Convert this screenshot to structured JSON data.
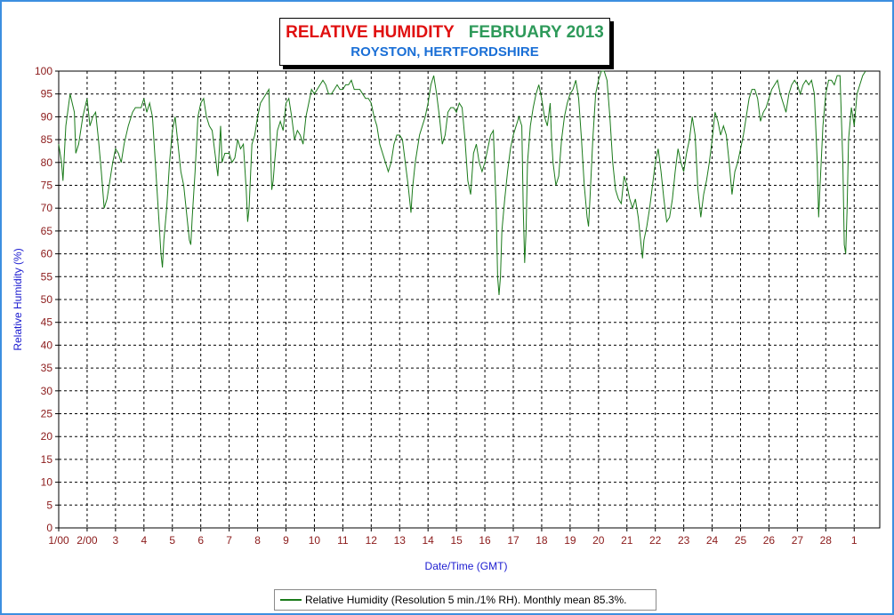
{
  "title": {
    "main": "RELATIVE HUMIDITY",
    "month": "FEBRUARY 2013",
    "location": "ROYSTON, HERTFORDSHIRE"
  },
  "legend": {
    "label": "Relative Humidity (Resolution 5 min./1% RH). Monthly mean 85.3%."
  },
  "colors": {
    "series": "#1a7a1a",
    "title_main": "#e01010",
    "title_month": "#2e9a5a",
    "title_location": "#1a6fd6",
    "axis_title": "#1b1bd0",
    "tick_label": "#8b1a1a",
    "frame": "#3c8fe0"
  },
  "chart_data": {
    "type": "line",
    "xlabel": "Date/Time (GMT)",
    "ylabel": "Relative Humidity (%)",
    "ylim": [
      0,
      100
    ],
    "xlim": [
      1,
      29.9
    ],
    "grid": true,
    "legend_position": "bottom",
    "y_ticks": [
      0,
      5,
      10,
      15,
      20,
      25,
      30,
      35,
      40,
      45,
      50,
      55,
      60,
      65,
      70,
      75,
      80,
      85,
      90,
      95,
      100
    ],
    "x_tick_labels": [
      "1/00",
      "2/00",
      "3",
      "4",
      "5",
      "6",
      "7",
      "8",
      "9",
      "10",
      "11",
      "12",
      "13",
      "14",
      "15",
      "16",
      "17",
      "18",
      "19",
      "20",
      "21",
      "22",
      "23",
      "24",
      "25",
      "26",
      "27",
      "28",
      "1"
    ],
    "x_tick_values": [
      1,
      2,
      3,
      4,
      5,
      6,
      7,
      8,
      9,
      10,
      11,
      12,
      13,
      14,
      15,
      16,
      17,
      18,
      19,
      20,
      21,
      22,
      23,
      24,
      25,
      26,
      27,
      28,
      29
    ],
    "series": [
      {
        "values": [
          [
            1.0,
            84
          ],
          [
            1.1,
            80
          ],
          [
            1.15,
            76
          ],
          [
            1.25,
            88
          ],
          [
            1.4,
            95
          ],
          [
            1.55,
            91
          ],
          [
            1.6,
            82
          ],
          [
            1.7,
            84
          ],
          [
            1.85,
            90
          ],
          [
            2.0,
            94
          ],
          [
            2.1,
            88
          ],
          [
            2.2,
            90
          ],
          [
            2.3,
            91
          ],
          [
            2.4,
            85
          ],
          [
            2.5,
            78
          ],
          [
            2.6,
            70
          ],
          [
            2.7,
            72
          ],
          [
            2.8,
            76
          ],
          [
            2.9,
            80
          ],
          [
            3.0,
            83
          ],
          [
            3.1,
            82
          ],
          [
            3.2,
            80
          ],
          [
            3.3,
            84
          ],
          [
            3.45,
            88
          ],
          [
            3.6,
            91
          ],
          [
            3.7,
            92
          ],
          [
            3.8,
            92
          ],
          [
            3.9,
            92
          ],
          [
            4.0,
            94
          ],
          [
            4.1,
            91
          ],
          [
            4.2,
            93
          ],
          [
            4.3,
            90
          ],
          [
            4.4,
            80
          ],
          [
            4.5,
            70
          ],
          [
            4.6,
            60
          ],
          [
            4.65,
            57
          ],
          [
            4.7,
            63
          ],
          [
            4.8,
            70
          ],
          [
            4.9,
            80
          ],
          [
            5.0,
            87
          ],
          [
            5.1,
            90
          ],
          [
            5.2,
            84
          ],
          [
            5.3,
            78
          ],
          [
            5.4,
            75
          ],
          [
            5.5,
            69
          ],
          [
            5.6,
            63
          ],
          [
            5.65,
            62
          ],
          [
            5.7,
            68
          ],
          [
            5.8,
            78
          ],
          [
            5.9,
            90
          ],
          [
            6.0,
            93
          ],
          [
            6.1,
            94
          ],
          [
            6.2,
            90
          ],
          [
            6.3,
            88
          ],
          [
            6.4,
            87
          ],
          [
            6.5,
            82
          ],
          [
            6.6,
            77
          ],
          [
            6.7,
            88
          ],
          [
            6.75,
            80
          ],
          [
            6.85,
            82
          ],
          [
            7.0,
            82
          ],
          [
            7.1,
            80
          ],
          [
            7.2,
            81
          ],
          [
            7.3,
            85
          ],
          [
            7.4,
            83
          ],
          [
            7.5,
            84
          ],
          [
            7.6,
            74
          ],
          [
            7.65,
            67
          ],
          [
            7.7,
            70
          ],
          [
            7.8,
            84
          ],
          [
            7.9,
            86
          ],
          [
            8.0,
            90
          ],
          [
            8.1,
            93
          ],
          [
            8.2,
            94
          ],
          [
            8.3,
            95
          ],
          [
            8.4,
            96
          ],
          [
            8.45,
            85
          ],
          [
            8.5,
            74
          ],
          [
            8.55,
            76
          ],
          [
            8.6,
            80
          ],
          [
            8.7,
            87
          ],
          [
            8.8,
            89
          ],
          [
            8.9,
            87
          ],
          [
            9.0,
            93
          ],
          [
            9.1,
            94
          ],
          [
            9.2,
            90
          ],
          [
            9.3,
            85
          ],
          [
            9.4,
            87
          ],
          [
            9.5,
            86
          ],
          [
            9.6,
            84
          ],
          [
            9.7,
            90
          ],
          [
            9.8,
            93
          ],
          [
            9.9,
            96
          ],
          [
            10.0,
            95
          ],
          [
            10.1,
            96
          ],
          [
            10.2,
            97
          ],
          [
            10.3,
            98
          ],
          [
            10.4,
            97
          ],
          [
            10.5,
            95
          ],
          [
            10.6,
            95
          ],
          [
            10.7,
            96
          ],
          [
            10.8,
            97
          ],
          [
            10.9,
            96
          ],
          [
            11.0,
            96
          ],
          [
            11.1,
            97
          ],
          [
            11.2,
            97
          ],
          [
            11.3,
            98
          ],
          [
            11.4,
            96
          ],
          [
            11.5,
            96
          ],
          [
            11.6,
            96
          ],
          [
            11.7,
            95
          ],
          [
            11.8,
            94
          ],
          [
            11.9,
            94
          ],
          [
            12.0,
            93
          ],
          [
            12.1,
            90
          ],
          [
            12.2,
            88
          ],
          [
            12.3,
            84
          ],
          [
            12.4,
            82
          ],
          [
            12.5,
            80
          ],
          [
            12.6,
            78
          ],
          [
            12.7,
            80
          ],
          [
            12.8,
            84
          ],
          [
            12.9,
            86
          ],
          [
            13.0,
            86
          ],
          [
            13.1,
            85
          ],
          [
            13.2,
            80
          ],
          [
            13.3,
            75
          ],
          [
            13.4,
            69
          ],
          [
            13.45,
            74
          ],
          [
            13.55,
            80
          ],
          [
            13.7,
            86
          ],
          [
            13.8,
            88
          ],
          [
            13.9,
            90
          ],
          [
            14.0,
            93
          ],
          [
            14.1,
            97
          ],
          [
            14.2,
            99
          ],
          [
            14.3,
            95
          ],
          [
            14.4,
            90
          ],
          [
            14.5,
            84
          ],
          [
            14.6,
            86
          ],
          [
            14.7,
            91
          ],
          [
            14.8,
            92
          ],
          [
            14.9,
            92
          ],
          [
            15.0,
            91
          ],
          [
            15.1,
            93
          ],
          [
            15.2,
            92
          ],
          [
            15.3,
            85
          ],
          [
            15.4,
            76
          ],
          [
            15.5,
            73
          ],
          [
            15.6,
            82
          ],
          [
            15.7,
            84
          ],
          [
            15.8,
            80
          ],
          [
            15.9,
            78
          ],
          [
            16.0,
            80
          ],
          [
            16.1,
            83
          ],
          [
            16.2,
            86
          ],
          [
            16.3,
            87
          ],
          [
            16.4,
            70
          ],
          [
            16.45,
            55
          ],
          [
            16.5,
            51
          ],
          [
            16.55,
            55
          ],
          [
            16.6,
            65
          ],
          [
            16.7,
            72
          ],
          [
            16.8,
            78
          ],
          [
            16.9,
            83
          ],
          [
            17.0,
            86
          ],
          [
            17.1,
            88
          ],
          [
            17.2,
            90
          ],
          [
            17.3,
            88
          ],
          [
            17.35,
            70
          ],
          [
            17.4,
            58
          ],
          [
            17.45,
            65
          ],
          [
            17.5,
            80
          ],
          [
            17.6,
            88
          ],
          [
            17.7,
            92
          ],
          [
            17.8,
            95
          ],
          [
            17.9,
            97
          ],
          [
            18.0,
            94
          ],
          [
            18.1,
            90
          ],
          [
            18.2,
            88
          ],
          [
            18.3,
            93
          ],
          [
            18.35,
            85
          ],
          [
            18.4,
            80
          ],
          [
            18.5,
            75
          ],
          [
            18.6,
            77
          ],
          [
            18.7,
            85
          ],
          [
            18.8,
            90
          ],
          [
            18.9,
            93
          ],
          [
            19.0,
            95
          ],
          [
            19.1,
            96
          ],
          [
            19.2,
            98
          ],
          [
            19.3,
            94
          ],
          [
            19.4,
            85
          ],
          [
            19.5,
            75
          ],
          [
            19.6,
            68
          ],
          [
            19.65,
            66
          ],
          [
            19.7,
            72
          ],
          [
            19.8,
            85
          ],
          [
            19.9,
            95
          ],
          [
            20.0,
            98
          ],
          [
            20.1,
            100
          ],
          [
            20.2,
            100
          ],
          [
            20.3,
            98
          ],
          [
            20.4,
            90
          ],
          [
            20.5,
            80
          ],
          [
            20.6,
            74
          ],
          [
            20.7,
            72
          ],
          [
            20.8,
            71
          ],
          [
            20.9,
            77
          ],
          [
            21.0,
            75
          ],
          [
            21.1,
            72
          ],
          [
            21.2,
            70
          ],
          [
            21.3,
            72
          ],
          [
            21.4,
            68
          ],
          [
            21.5,
            62
          ],
          [
            21.55,
            59
          ],
          [
            21.6,
            63
          ],
          [
            21.7,
            66
          ],
          [
            21.8,
            70
          ],
          [
            21.9,
            75
          ],
          [
            22.0,
            80
          ],
          [
            22.1,
            83
          ],
          [
            22.2,
            78
          ],
          [
            22.3,
            72
          ],
          [
            22.4,
            67
          ],
          [
            22.5,
            68
          ],
          [
            22.6,
            72
          ],
          [
            22.7,
            78
          ],
          [
            22.8,
            83
          ],
          [
            22.9,
            80
          ],
          [
            23.0,
            78
          ],
          [
            23.1,
            82
          ],
          [
            23.2,
            85
          ],
          [
            23.3,
            90
          ],
          [
            23.4,
            86
          ],
          [
            23.5,
            74
          ],
          [
            23.6,
            68
          ],
          [
            23.7,
            73
          ],
          [
            23.8,
            76
          ],
          [
            23.9,
            80
          ],
          [
            24.0,
            85
          ],
          [
            24.1,
            91
          ],
          [
            24.2,
            89
          ],
          [
            24.3,
            86
          ],
          [
            24.4,
            88
          ],
          [
            24.5,
            86
          ],
          [
            24.6,
            80
          ],
          [
            24.7,
            73
          ],
          [
            24.8,
            78
          ],
          [
            24.9,
            80
          ],
          [
            25.0,
            83
          ],
          [
            25.1,
            86
          ],
          [
            25.2,
            90
          ],
          [
            25.3,
            94
          ],
          [
            25.4,
            96
          ],
          [
            25.5,
            96
          ],
          [
            25.6,
            94
          ],
          [
            25.7,
            89
          ],
          [
            25.8,
            91
          ],
          [
            25.9,
            92
          ],
          [
            26.0,
            94
          ],
          [
            26.1,
            96
          ],
          [
            26.2,
            97
          ],
          [
            26.3,
            98
          ],
          [
            26.4,
            95
          ],
          [
            26.5,
            93
          ],
          [
            26.6,
            91
          ],
          [
            26.7,
            95
          ],
          [
            26.8,
            97
          ],
          [
            26.9,
            98
          ],
          [
            27.0,
            97
          ],
          [
            27.1,
            95
          ],
          [
            27.2,
            97
          ],
          [
            27.3,
            98
          ],
          [
            27.4,
            97
          ],
          [
            27.5,
            98
          ],
          [
            27.6,
            95
          ],
          [
            27.7,
            80
          ],
          [
            27.75,
            68
          ],
          [
            27.8,
            75
          ],
          [
            27.9,
            88
          ],
          [
            28.0,
            95
          ],
          [
            28.1,
            98
          ],
          [
            28.2,
            98
          ],
          [
            28.3,
            97
          ],
          [
            28.4,
            99
          ],
          [
            28.5,
            99
          ],
          [
            28.6,
            80
          ],
          [
            28.65,
            62
          ],
          [
            28.7,
            60
          ],
          [
            28.75,
            70
          ],
          [
            28.8,
            85
          ],
          [
            28.9,
            92
          ],
          [
            29.0,
            88
          ],
          [
            29.1,
            95
          ],
          [
            29.2,
            97
          ],
          [
            29.3,
            99
          ],
          [
            29.4,
            100
          ]
        ]
      }
    ]
  }
}
